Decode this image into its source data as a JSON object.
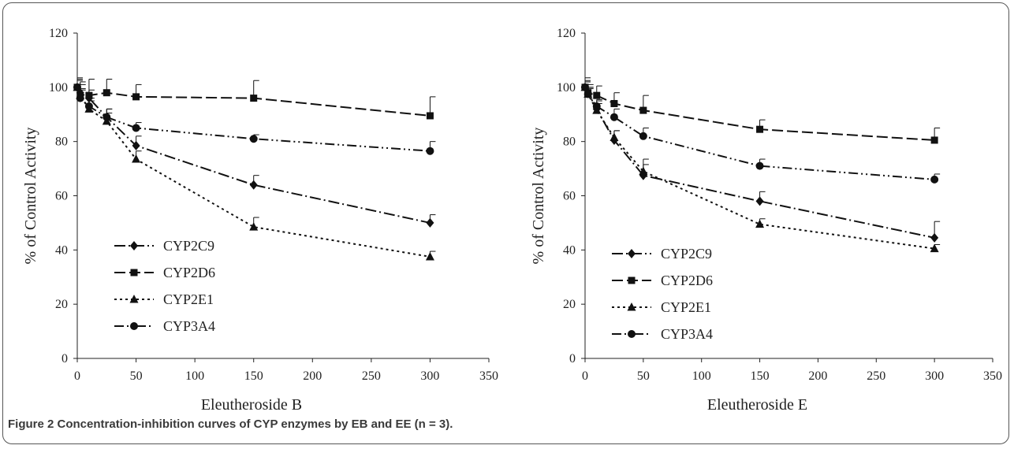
{
  "caption": {
    "text": "Figure 2 Concentration-inhibition curves of CYP enzymes by EB and EE (n = 3)."
  },
  "chart_data": [
    {
      "type": "line",
      "title": "",
      "xlabel": "Eleutheroside B",
      "ylabel": "% of Control Activity",
      "xlim": [
        0,
        350
      ],
      "ylim": [
        0,
        120
      ],
      "xticks": [
        "0",
        "50",
        "100",
        "150",
        "200",
        "250",
        "300",
        "350"
      ],
      "yticks": [
        "0",
        "20",
        "40",
        "60",
        "80",
        "100",
        "120"
      ],
      "grid": false,
      "legend_position": "bottom-left",
      "x": [
        0,
        2.5,
        10,
        25,
        50,
        150,
        300
      ],
      "series": [
        {
          "name": "CYP2C9",
          "marker": "diamond",
          "dash": "long-dash-dot",
          "values": [
            100,
            98,
            96,
            89,
            78.5,
            64,
            50
          ],
          "errors": [
            3,
            3,
            3,
            3,
            3.5,
            3.5,
            3
          ]
        },
        {
          "name": "CYP2D6",
          "marker": "square",
          "dash": "long-dash",
          "values": [
            100,
            97,
            97,
            98,
            96.5,
            96,
            89.5
          ],
          "errors": [
            3.5,
            5,
            6,
            5,
            4.5,
            6.5,
            7
          ]
        },
        {
          "name": "CYP2E1",
          "marker": "triangle",
          "dash": "dotted",
          "values": [
            100,
            97,
            92,
            87.5,
            73.5,
            48.5,
            37.5
          ],
          "errors": [
            2.5,
            2.5,
            3,
            3,
            3,
            3.5,
            2
          ]
        },
        {
          "name": "CYP3A4",
          "marker": "circle",
          "dash": "dash-dot-dot",
          "values": [
            100,
            96,
            93,
            89,
            85,
            81,
            76.5
          ],
          "errors": [
            3,
            3,
            3,
            3,
            2,
            1.5,
            3.5
          ]
        }
      ]
    },
    {
      "type": "line",
      "title": "",
      "xlabel": "Eleutheroside E",
      "ylabel": "% of Control Activity",
      "xlim": [
        0,
        350
      ],
      "ylim": [
        0,
        120
      ],
      "xticks": [
        "0",
        "50",
        "100",
        "150",
        "200",
        "250",
        "300",
        "350"
      ],
      "yticks": [
        "0",
        "20",
        "40",
        "60",
        "80",
        "100",
        "120"
      ],
      "grid": false,
      "legend_position": "bottom-left",
      "x": [
        0,
        2.5,
        10,
        25,
        50,
        150,
        300
      ],
      "series": [
        {
          "name": "CYP2C9",
          "marker": "diamond",
          "dash": "long-dash-dot",
          "values": [
            100,
            98,
            92,
            80.5,
            67.5,
            58,
            44.5
          ],
          "errors": [
            2,
            2,
            3,
            3.5,
            6,
            3.5,
            6
          ]
        },
        {
          "name": "CYP2D6",
          "marker": "square",
          "dash": "long-dash",
          "values": [
            100,
            98,
            97,
            94,
            91.5,
            84.5,
            80.5
          ],
          "errors": [
            3.5,
            3,
            3.5,
            4,
            5.5,
            3.5,
            4.5
          ]
        },
        {
          "name": "CYP2E1",
          "marker": "triangle",
          "dash": "dotted",
          "values": [
            100,
            97.5,
            91.5,
            81.5,
            69,
            49.5,
            40.5
          ],
          "errors": [
            2,
            2,
            2.5,
            2.5,
            2.5,
            2,
            1.5
          ]
        },
        {
          "name": "CYP3A4",
          "marker": "circle",
          "dash": "dash-dot-dot",
          "values": [
            100,
            97.5,
            93,
            89,
            82,
            71,
            66
          ],
          "errors": [
            2.5,
            2.5,
            2.5,
            3,
            3,
            2.5,
            2
          ]
        }
      ]
    }
  ]
}
